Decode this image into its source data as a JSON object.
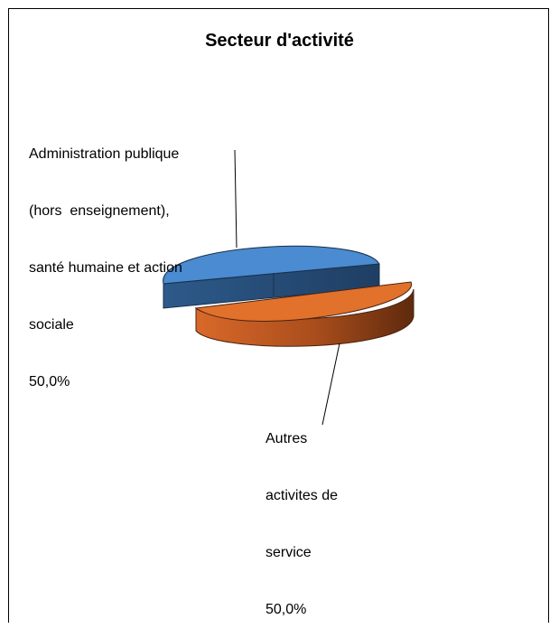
{
  "chart_data": {
    "type": "pie",
    "title": "Secteur d'activité",
    "categories": [
      "Administration publique (hors  enseignement), santé humaine et action sociale",
      "Autres activites de service"
    ],
    "values": [
      50.0,
      50.0
    ],
    "data_labels": [
      {
        "lines": [
          "Administration publique",
          "(hors  enseignement),",
          "santé humaine et action",
          "sociale"
        ],
        "value": "50,0%"
      },
      {
        "lines": [
          "Autres",
          "activites de",
          "service"
        ],
        "value": "50,0%"
      }
    ],
    "colors": [
      "#4a8bd1",
      "#e1712b"
    ],
    "style": "3d-exploded",
    "legend": "none"
  }
}
